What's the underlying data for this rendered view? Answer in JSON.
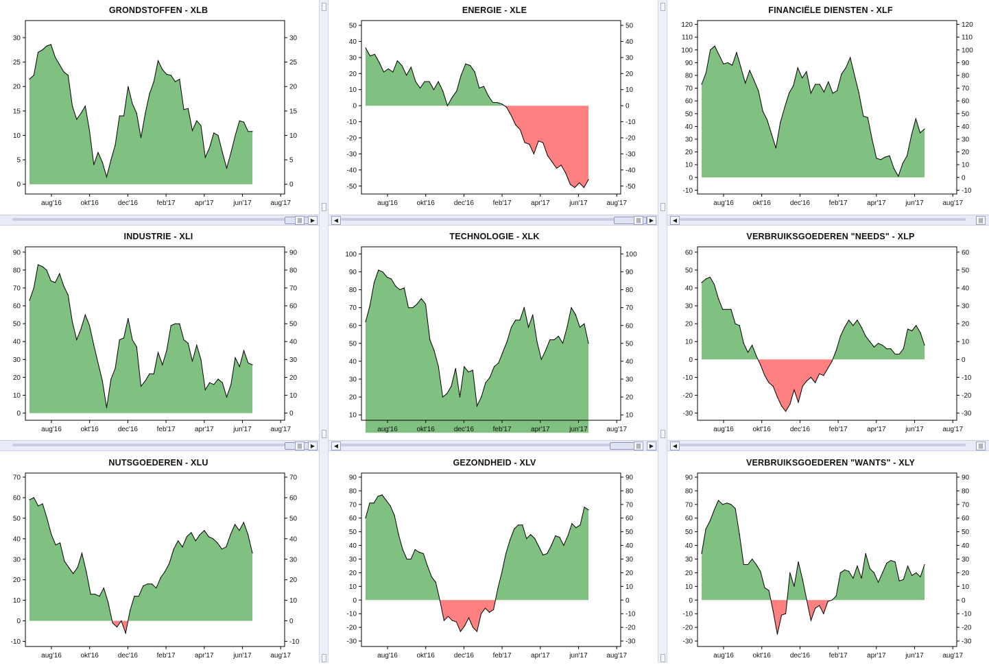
{
  "colors": {
    "positive_fill": "#80c080",
    "negative_fill": "#ff8080",
    "line": "#000000",
    "frame": "#000000"
  },
  "x_tick_labels": [
    "aug'16",
    "okt'16",
    "dec'16",
    "feb'17",
    "apr'17",
    "jun'17",
    "aug'17"
  ],
  "scrollbar_icons": {
    "left": "◀",
    "right": "▶",
    "grip": "|||"
  },
  "chart_data": [
    {
      "type": "area",
      "title": "GRONDSTOFFEN - XLB",
      "y_ticks": [
        0,
        5,
        10,
        15,
        20,
        25,
        30
      ],
      "ylim": [
        -2,
        33.5
      ],
      "values": [
        21.5,
        22.3,
        27,
        27.5,
        28.3,
        28.6,
        26,
        24.5,
        23,
        22.3,
        16,
        13.3,
        14.5,
        16,
        11,
        4,
        6.5,
        4.5,
        1.5,
        5,
        8,
        14,
        14,
        20,
        16.5,
        14.5,
        9.5,
        14.5,
        18.5,
        21,
        25.3,
        23.5,
        22.5,
        22.3,
        21,
        21.5,
        15.3,
        15.5,
        11,
        13,
        12,
        5.5,
        7.5,
        10.5,
        10,
        6.5,
        3.3,
        6.5,
        10,
        13,
        12.7,
        10.8,
        10.8
      ]
    },
    {
      "type": "area",
      "title": "ENERGIE - XLE",
      "y_ticks": [
        -50,
        -40,
        -30,
        -20,
        -10,
        0,
        10,
        20,
        30,
        40,
        50
      ],
      "ylim": [
        -55,
        53
      ],
      "values": [
        36,
        31,
        32,
        27,
        21,
        23,
        21,
        28,
        25,
        19,
        24,
        15,
        11,
        15,
        15,
        10,
        15,
        9,
        0,
        5,
        9,
        19,
        26,
        25,
        21,
        11,
        12,
        6,
        2,
        2,
        1,
        -1,
        -6,
        -12,
        -15,
        -23,
        -24,
        -30,
        -22,
        -23,
        -31,
        -35,
        -39,
        -37,
        -42,
        -49,
        -51,
        -48,
        -51,
        -46
      ]
    },
    {
      "type": "area",
      "title": "FINANCIËLE DIENSTEN - XLF",
      "y_ticks": [
        -10,
        0,
        10,
        20,
        30,
        40,
        50,
        60,
        70,
        80,
        90,
        100,
        110,
        120
      ],
      "ylim": [
        -13,
        123
      ],
      "values": [
        73,
        82,
        100,
        103,
        96,
        89,
        90,
        88,
        98,
        86,
        74,
        84,
        76,
        68,
        52,
        45,
        34,
        23,
        43,
        55,
        66,
        72,
        86,
        78,
        83,
        66,
        73,
        73,
        67,
        75,
        66,
        68,
        81,
        86,
        94,
        80,
        66,
        48,
        47,
        30,
        15,
        14,
        16,
        17,
        7,
        1,
        11,
        17,
        33,
        46,
        35,
        38
      ]
    },
    {
      "type": "area",
      "title": "INDUSTRIE - XLI",
      "y_ticks": [
        0,
        10,
        20,
        30,
        40,
        50,
        60,
        70,
        80,
        90
      ],
      "ylim": [
        -4,
        93
      ],
      "values": [
        63,
        70,
        83,
        82,
        80,
        74,
        73,
        78,
        71,
        66,
        51,
        41,
        47,
        55,
        49,
        38,
        28,
        18,
        3,
        19,
        25,
        41,
        42,
        53,
        41,
        37,
        15,
        18,
        22,
        22,
        34,
        27,
        35,
        49,
        50,
        50,
        41,
        39,
        29,
        38,
        30,
        13,
        17,
        16,
        19,
        17,
        9,
        16,
        31,
        26,
        35,
        28,
        27
      ]
    },
    {
      "type": "area",
      "title": "TECHNOLOGIE - XLK",
      "y_ticks": [
        10,
        20,
        30,
        40,
        50,
        60,
        70,
        80,
        90,
        100
      ],
      "ylim": [
        7,
        104
      ],
      "values": [
        62,
        71,
        84,
        91,
        90,
        87,
        86,
        82,
        80,
        81,
        70,
        70,
        72,
        75,
        72,
        52,
        46,
        37,
        20,
        22,
        26,
        36,
        20,
        37,
        34,
        35,
        15,
        20,
        28,
        31,
        37,
        39,
        45,
        51,
        59,
        63,
        63,
        70,
        59,
        66,
        51,
        41,
        46,
        52,
        52,
        54,
        50,
        59,
        70,
        66,
        59,
        61,
        50
      ]
    },
    {
      "type": "area",
      "title": "VERBRUIKSGOEDEREN \"NEEDS\" - XLP",
      "y_ticks": [
        -30,
        -20,
        -10,
        0,
        10,
        20,
        30,
        40,
        50,
        60
      ],
      "ylim": [
        -34,
        63
      ],
      "values": [
        43,
        45,
        46,
        42,
        34,
        28,
        28,
        28,
        20,
        19,
        9,
        4,
        8,
        2,
        -3,
        -9,
        -13,
        -15,
        -21,
        -26,
        -29,
        -25,
        -17,
        -24,
        -15,
        -12,
        -10,
        -13,
        -8,
        -9,
        -5,
        -1,
        5,
        13,
        18,
        22,
        19,
        22,
        18,
        13,
        10,
        7,
        9,
        8,
        6,
        6,
        3,
        3,
        6,
        17,
        16,
        19,
        15,
        8
      ]
    },
    {
      "type": "area",
      "title": "NUTSGOEDEREN - XLU",
      "y_ticks": [
        -10,
        0,
        10,
        20,
        30,
        40,
        50,
        60,
        70
      ],
      "ylim": [
        -12.5,
        72
      ],
      "values": [
        59,
        60,
        56,
        57,
        50,
        42,
        37,
        38,
        29,
        26,
        23,
        26,
        33,
        24,
        13,
        13,
        12,
        16,
        9,
        -1,
        -3,
        0,
        -6,
        5,
        12,
        12,
        17,
        18,
        18,
        16,
        21,
        24,
        28,
        35,
        39,
        36,
        41,
        43,
        39,
        42,
        44,
        41,
        40,
        38,
        35,
        36,
        42,
        47,
        44,
        48,
        42,
        33
      ]
    },
    {
      "type": "area",
      "title": "GEZONDHEID - XLV",
      "y_ticks": [
        -30,
        -20,
        -10,
        0,
        10,
        20,
        30,
        40,
        50,
        60,
        70,
        80,
        90
      ],
      "ylim": [
        -34,
        93
      ],
      "values": [
        60,
        71,
        71,
        76,
        77,
        73,
        69,
        62,
        48,
        37,
        30,
        30,
        37,
        35,
        34,
        25,
        17,
        13,
        0,
        -15,
        -12,
        -15,
        -16,
        -23,
        -19,
        -13,
        -20,
        -23,
        -10,
        -6,
        -9,
        -7,
        8,
        20,
        34,
        44,
        52,
        55,
        55,
        45,
        48,
        45,
        39,
        33,
        34,
        40,
        47,
        46,
        40,
        47,
        56,
        53,
        55,
        68,
        66
      ]
    },
    {
      "type": "area",
      "title": "VERBRUIKSGOEDEREN \"WANTS\" - XLY",
      "y_ticks": [
        -30,
        -20,
        -10,
        0,
        10,
        20,
        30,
        40,
        50,
        60,
        70,
        80,
        90
      ],
      "ylim": [
        -34,
        93
      ],
      "values": [
        34,
        52,
        58,
        66,
        73,
        70,
        71,
        70,
        67,
        48,
        26,
        26,
        30,
        26,
        21,
        9,
        7,
        -8,
        -25,
        -11,
        -10,
        20,
        10,
        28,
        15,
        0,
        -15,
        -6,
        -4,
        -10,
        -1,
        0,
        3,
        20,
        22,
        21,
        16,
        25,
        16,
        34,
        23,
        20,
        13,
        20,
        27,
        29,
        28,
        14,
        15,
        25,
        18,
        20,
        17,
        26
      ]
    }
  ]
}
